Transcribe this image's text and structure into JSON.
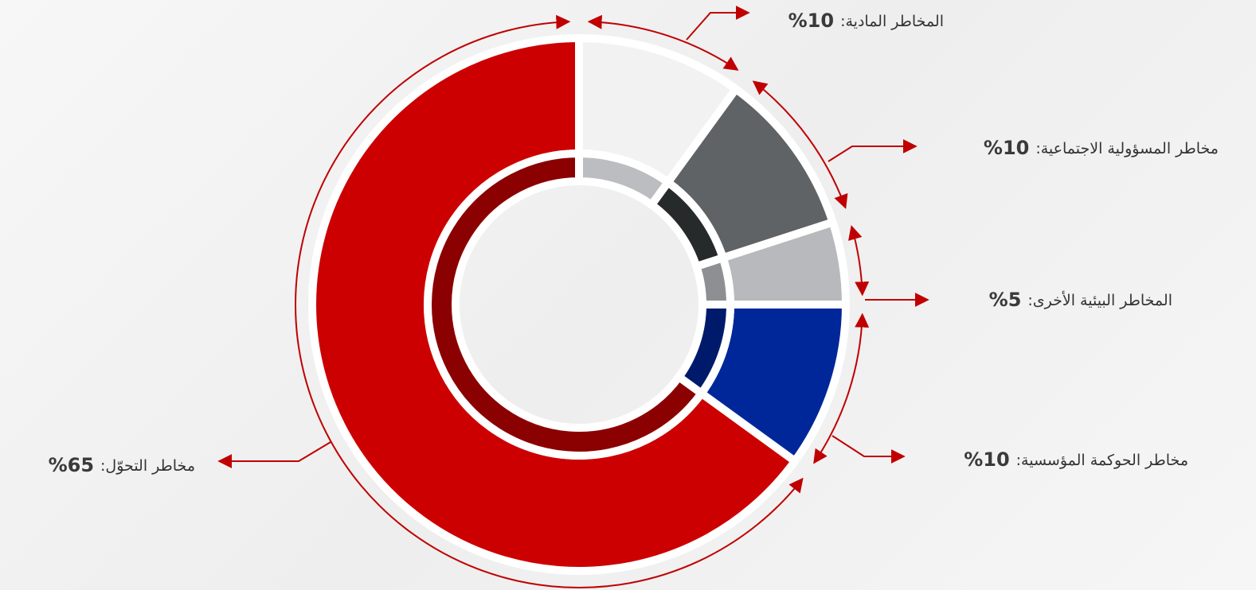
{
  "chart_data": {
    "type": "donut",
    "categories": [
      "المخاطر المادية:",
      "مخاطر المسؤولية الاجتماعية:",
      "المخاطر البيئية الأخرى:",
      "مخاطر الحوكمة المؤسسية:",
      "مخاطر التحوّل:"
    ],
    "values": [
      10,
      10,
      5,
      10,
      65
    ],
    "value_labels": [
      "10%",
      "10%",
      "5%",
      "10%",
      "65%"
    ],
    "colors": [
      "#f2f2f2",
      "#5f6366",
      "#b8b9bc",
      "#00279a",
      "#cc0000"
    ],
    "inner_colors": [
      "#bcbdc0",
      "#272a2b",
      "#8e8f92",
      "#001a6b",
      "#8b0000"
    ]
  }
}
